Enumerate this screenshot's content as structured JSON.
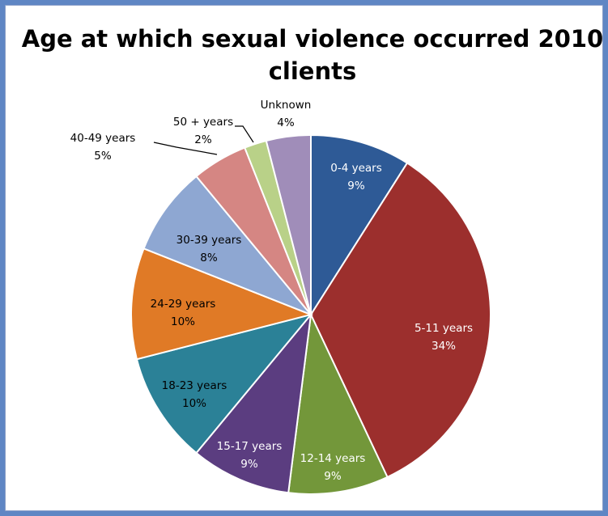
{
  "chart_data": {
    "type": "pie",
    "title_line1": "Age at which sexual violence occurred 2010",
    "title_line2": "clients",
    "start_angle_deg": 0,
    "direction": "clockwise",
    "slices": [
      {
        "label": "0-4 years",
        "pct_label": "9%",
        "value": 9,
        "color": "#2e5a96",
        "label_color": "#ffffff"
      },
      {
        "label": "5-11 years",
        "pct_label": "34%",
        "value": 34,
        "color": "#9c2f2d",
        "label_color": "#ffffff"
      },
      {
        "label": "12-14 years",
        "pct_label": "9%",
        "value": 9,
        "color": "#73973a",
        "label_color": "#ffffff"
      },
      {
        "label": "15-17 years",
        "pct_label": "9%",
        "value": 9,
        "color": "#5b3d80",
        "label_color": "#ffffff"
      },
      {
        "label": "18-23 years",
        "pct_label": "10%",
        "value": 10,
        "color": "#2b8197",
        "label_color": "#000000"
      },
      {
        "label": "24-29 years",
        "pct_label": "10%",
        "value": 10,
        "color": "#e07a26",
        "label_color": "#000000"
      },
      {
        "label": "30-39 years",
        "pct_label": "8%",
        "value": 8,
        "color": "#8ea7d2",
        "label_color": "#000000"
      },
      {
        "label": "40-49 years",
        "pct_label": "5%",
        "value": 5,
        "color": "#d58683",
        "label_color": "#000000"
      },
      {
        "label": "50 + years",
        "pct_label": "2%",
        "value": 2,
        "color": "#b9d188",
        "label_color": "#000000"
      },
      {
        "label": "Unknown",
        "pct_label": "4%",
        "value": 4,
        "color": "#a08db9",
        "label_color": "#000000"
      }
    ]
  }
}
